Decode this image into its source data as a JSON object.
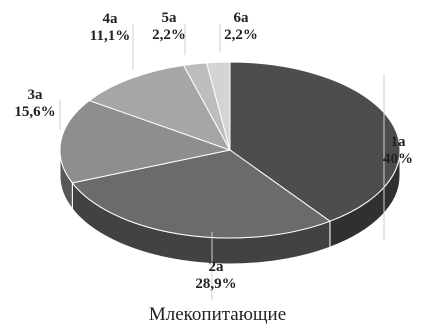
{
  "chart_data": {
    "type": "pie",
    "title": "Млекопитающие",
    "categories": [
      "1a",
      "2a",
      "3a",
      "4a",
      "5a",
      "6a"
    ],
    "values": [
      40,
      28.9,
      15.6,
      11.1,
      2.2,
      2.2
    ],
    "value_labels": [
      "40%",
      "28,9%",
      "15,6%",
      "11,1%",
      "2,2%",
      "2,2%"
    ],
    "style": "3d",
    "colors": [
      "#4d4d4d",
      "#6b6b6b",
      "#8e8e8e",
      "#a6a6a6",
      "#bdbdbd",
      "#d4d4d4"
    ]
  }
}
